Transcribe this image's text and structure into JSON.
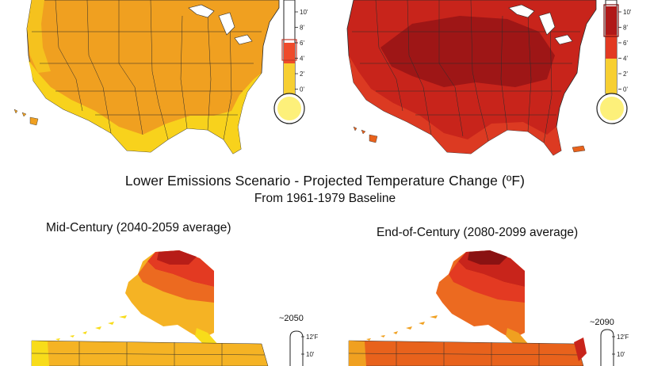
{
  "scenario_title": "Lower Emissions Scenario - Projected Temperature Change (ºF)",
  "baseline_subtitle": "From 1961-1979 Baseline",
  "panels": {
    "mid_century": {
      "title": "Mid-Century (2040-2059 average)",
      "year_marker": "~2050"
    },
    "end_century": {
      "title": "End-of-Century (2080-2099 average)",
      "year_marker": "~2090"
    }
  },
  "upper_scale": {
    "ticks": [
      "10'",
      "8'",
      "6'",
      "4'",
      "2'",
      "0'"
    ],
    "note": ""
  },
  "lower_scale": {
    "ticks": [
      "12'F",
      "10'"
    ]
  },
  "colors": {
    "yellow": "#f8dc1a",
    "light_orange": "#f5b324",
    "orange": "#f0a020",
    "dark_orange": "#e8621c",
    "red": "#cf2a1d",
    "dark_red": "#a81818",
    "deep_red": "#8a1212",
    "bulb_yellow": "#fdf07a"
  }
}
